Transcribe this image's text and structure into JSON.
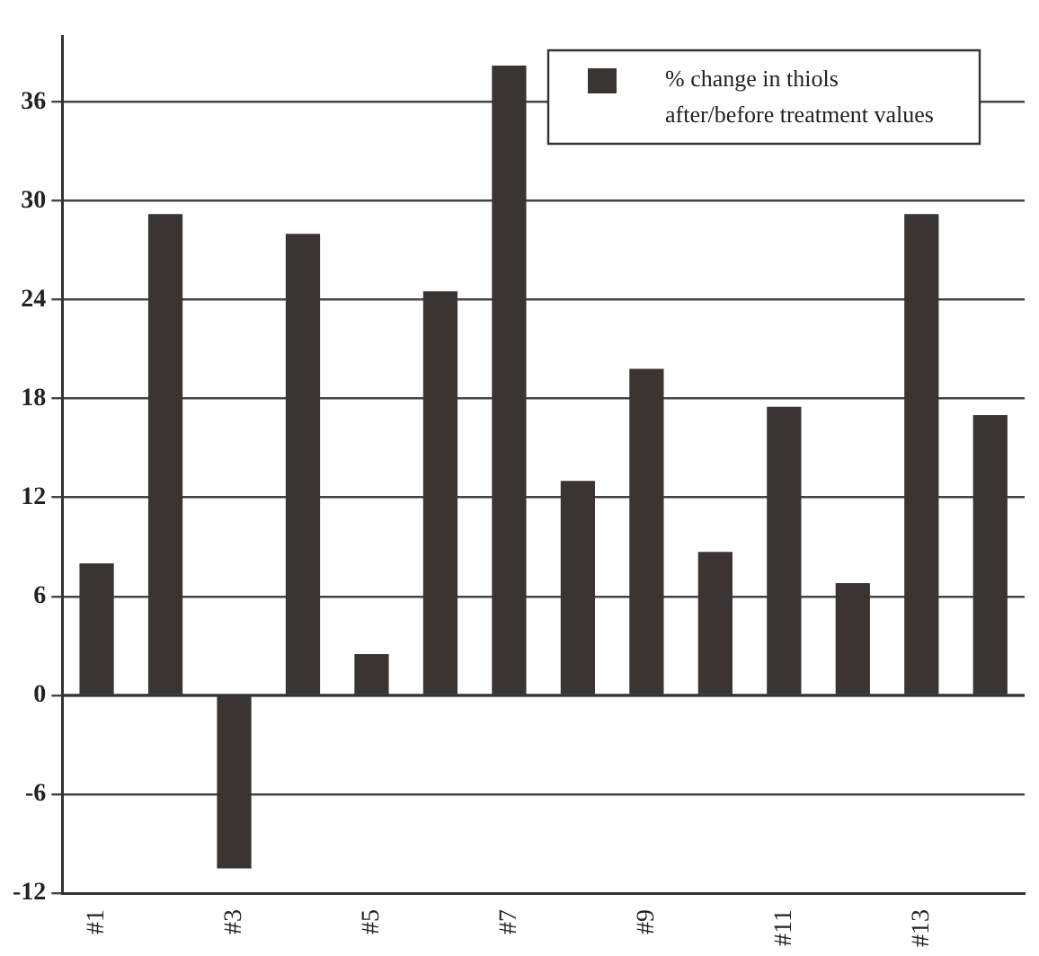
{
  "chart_data": {
    "type": "bar",
    "categories": [
      "#1",
      null,
      "#3",
      null,
      "#5",
      null,
      "#7",
      null,
      "#9",
      null,
      "#11",
      null,
      "#13",
      null
    ],
    "series": [
      {
        "name": "% change in thiols after/before treatment values",
        "color": "#3a3533",
        "values": [
          8,
          29.2,
          -10.5,
          28,
          2.5,
          24.5,
          38.2,
          13,
          19.8,
          8.7,
          17.5,
          6.8,
          29.2,
          17
        ]
      }
    ],
    "ylim": [
      -12,
      40
    ],
    "yticks": [
      -12,
      -6,
      0,
      6,
      12,
      18,
      24,
      30,
      36
    ],
    "grid": "y",
    "legend": "top right"
  }
}
